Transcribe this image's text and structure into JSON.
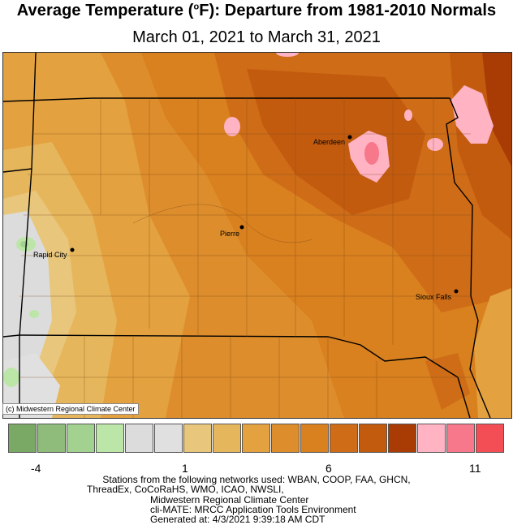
{
  "title_prefix": "Average Temperature (",
  "title_unit_sup": "o",
  "title_suffix": "F): Departure from 1981-2010 Normals",
  "subtitle": "March 01, 2021 to March 31, 2021",
  "map": {
    "cities": [
      {
        "name": "Aberdeen"
      },
      {
        "name": "Pierre"
      },
      {
        "name": "Rapid City"
      },
      {
        "name": "Sioux Falls"
      }
    ],
    "copyright": "(c) Midwestern Regional Climate Center"
  },
  "legend": {
    "colors": [
      "#7aa965",
      "#8fbc7a",
      "#a3d18f",
      "#bce6a8",
      "#dcdcdc",
      "#e0e0e0",
      "#e8c67c",
      "#e6b65c",
      "#e4a13f",
      "#de8d2c",
      "#d9801f",
      "#cf6c17",
      "#c35b0f",
      "#a93b05",
      "#ffb3c3",
      "#f7788a",
      "#f34d55"
    ],
    "ticks": [
      "-4",
      "1",
      "6",
      "11"
    ]
  },
  "footer": {
    "line1": "Stations from the following networks used: WBAN, COOP, FAA, GHCN,",
    "line2": "ThreadEx, CoCoRaHS, WMO, ICAO, NWSLI,",
    "line3": "Midwestern Regional Climate Center",
    "line4": "cli-MATE: MRCC Application Tools Environment",
    "line5": "Generated at: 4/3/2021 9:39:18 AM CDT"
  }
}
